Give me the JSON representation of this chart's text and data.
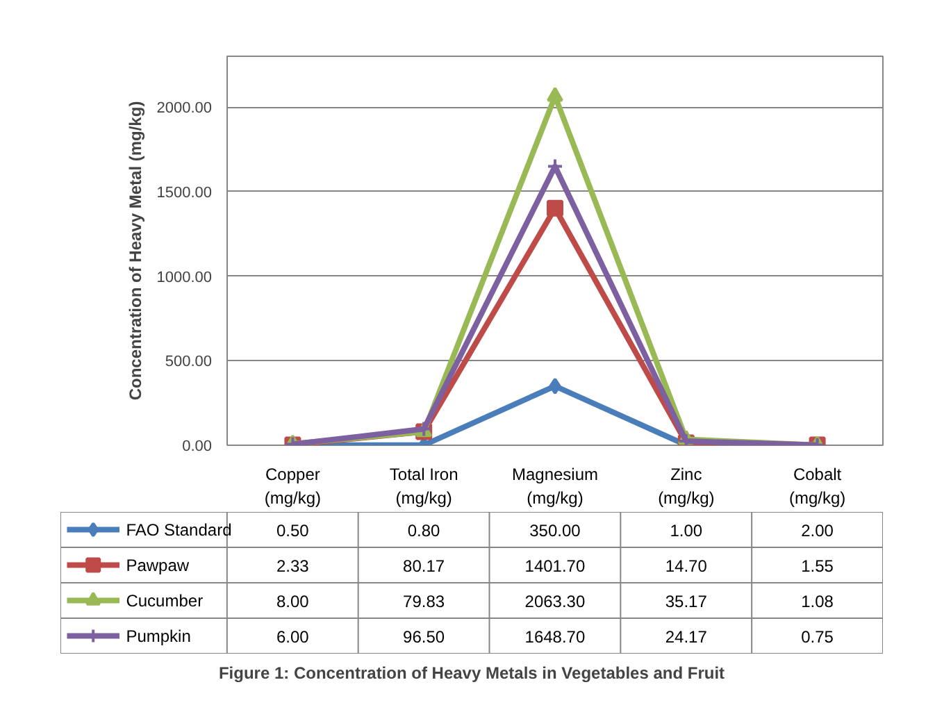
{
  "chart_data": {
    "type": "line",
    "title": "Figure 1: Concentration of Heavy Metals in Vegetables and Fruit",
    "ylabel": "Concentration of Heavy Metal (mg/kg)",
    "categories": [
      "Copper (mg/kg)",
      "Total Iron (mg/kg)",
      "Magnesium (mg/kg)",
      "Zinc (mg/kg)",
      "Cobalt (mg/kg)"
    ],
    "series": [
      {
        "name": "FAO Standard",
        "color": "#4a7ebb",
        "marker": "diamond",
        "values": [
          0.5,
          0.8,
          350.0,
          1.0,
          2.0
        ],
        "value_labels": [
          "0.50",
          "0.80",
          "350.00",
          "1.00",
          "2.00"
        ]
      },
      {
        "name": "Pawpaw",
        "color": "#be4b48",
        "marker": "square",
        "values": [
          2.33,
          80.17,
          1401.7,
          14.7,
          1.55
        ],
        "value_labels": [
          "2.33",
          "80.17",
          "1401.70",
          "14.70",
          "1.55"
        ]
      },
      {
        "name": "Cucumber",
        "color": "#98b954",
        "marker": "triangle",
        "values": [
          8.0,
          79.83,
          2063.3,
          35.17,
          1.08
        ],
        "value_labels": [
          "8.00",
          "79.83",
          "2063.30",
          "35.17",
          "1.08"
        ]
      },
      {
        "name": "Pumpkin",
        "color": "#7d60a0",
        "marker": "cross",
        "values": [
          6.0,
          96.5,
          1648.7,
          24.17,
          0.75
        ],
        "value_labels": [
          "6.00",
          "96.50",
          "1648.70",
          "24.17",
          "0.75"
        ]
      }
    ],
    "ylim": [
      0,
      2300
    ],
    "yticks": [
      {
        "value": 0,
        "label": "0.00"
      },
      {
        "value": 500,
        "label": "500.00"
      },
      {
        "value": 1000,
        "label": "1000.00"
      },
      {
        "value": 1500,
        "label": "1500.00"
      },
      {
        "value": 2000,
        "label": "2000.00"
      }
    ],
    "grid": "y",
    "legend": "bottom"
  }
}
